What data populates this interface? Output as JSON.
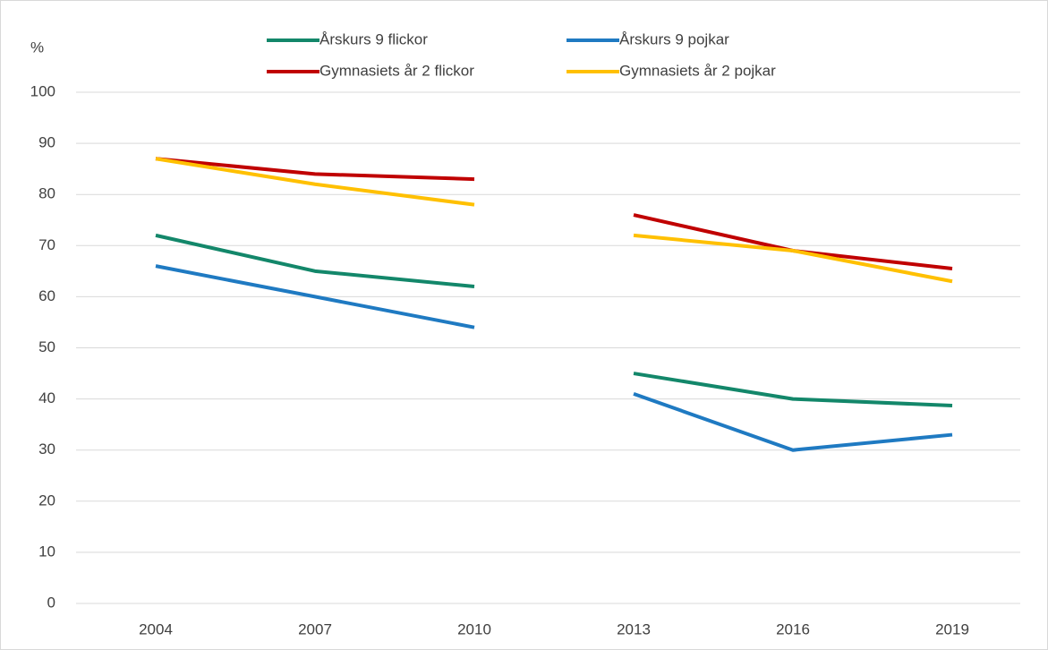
{
  "chart_data": {
    "type": "line",
    "y_label": "%",
    "categories": [
      "2004",
      "2007",
      "2010",
      "2013",
      "2016",
      "2019"
    ],
    "break_after": "2010",
    "series": [
      {
        "name": "Årskurs 9 flickor",
        "color": "#13876a",
        "values": [
          72,
          65,
          62,
          45,
          40,
          38.7
        ]
      },
      {
        "name": "Årskurs 9 pojkar",
        "color": "#1f7ac2",
        "values": [
          66,
          60,
          54,
          41,
          30,
          33
        ]
      },
      {
        "name": "Gymnasiets år 2 flickor",
        "color": "#c00000",
        "values": [
          87,
          84,
          83,
          76,
          69,
          65.5
        ]
      },
      {
        "name": "Gymnasiets år 2 pojkar",
        "color": "#ffc000",
        "values": [
          87,
          82,
          78,
          72,
          69,
          63
        ]
      }
    ],
    "ylim": [
      0,
      100
    ],
    "yticks": [
      0,
      10,
      20,
      30,
      40,
      50,
      60,
      70,
      80,
      90,
      100
    ],
    "grid": true
  }
}
